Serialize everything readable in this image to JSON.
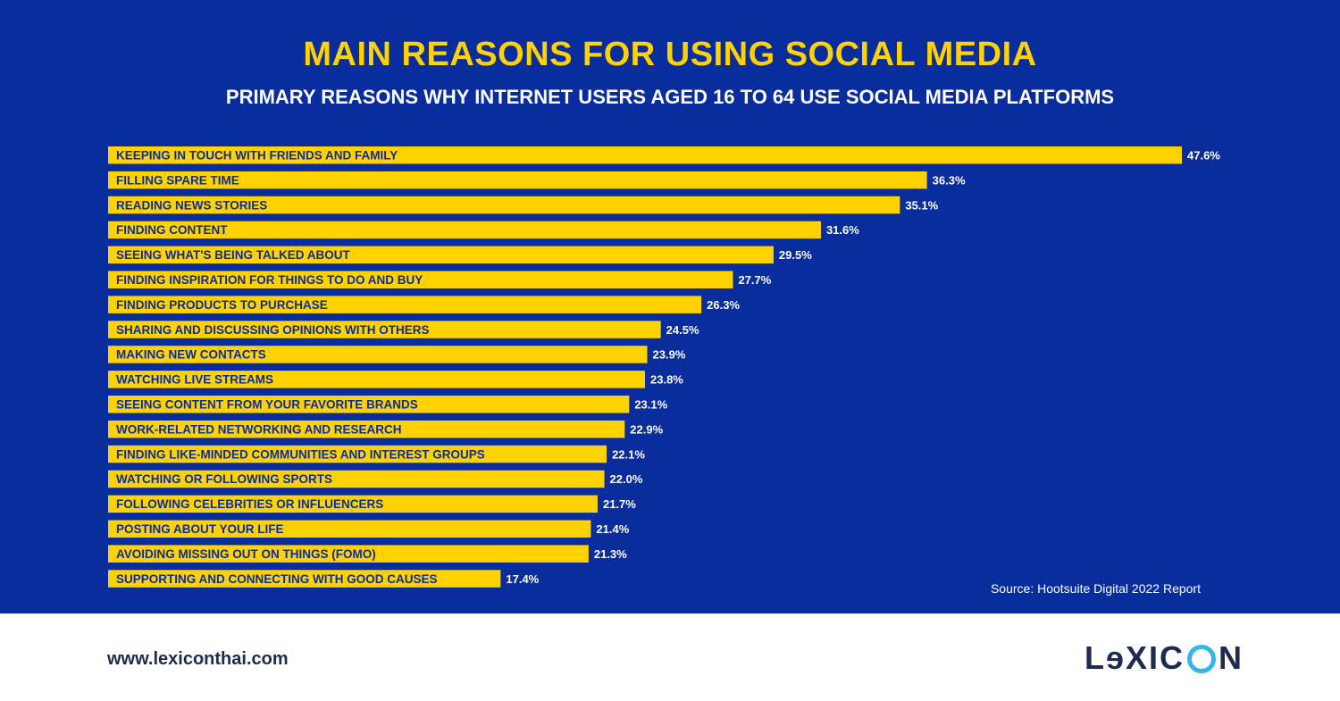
{
  "colors": {
    "background": "#0a2d9e",
    "bar": "#ffd200",
    "title": "#ffd200",
    "text": "#ffffff",
    "footer_text": "#1e2a52",
    "logo_accent": "#35b6e8"
  },
  "header": {
    "title": "MAIN REASONS FOR USING SOCIAL MEDIA",
    "subtitle": "PRIMARY REASONS WHY INTERNET USERS AGED 16 TO 64 USE SOCIAL MEDIA PLATFORMS"
  },
  "chart_data": {
    "type": "bar",
    "orientation": "horizontal",
    "title": "MAIN REASONS FOR USING SOCIAL MEDIA",
    "subtitle": "PRIMARY REASONS WHY INTERNET USERS AGED 16 TO 64 USE SOCIAL MEDIA PLATFORMS",
    "xlabel": "",
    "ylabel": "",
    "grid": false,
    "categories": [
      "KEEPING IN TOUCH WITH FRIENDS AND FAMILY",
      "FILLING SPARE TIME",
      "READING NEWS STORIES",
      "FINDING CONTENT",
      "SEEING WHAT'S BEING TALKED ABOUT",
      "FINDING INSPIRATION FOR THINGS TO DO AND BUY",
      "FINDING PRODUCTS TO PURCHASE",
      "SHARING AND DISCUSSING OPINIONS WITH OTHERS",
      "MAKING NEW CONTACTS",
      "WATCHING LIVE STREAMS",
      "SEEING CONTENT FROM YOUR FAVORITE BRANDS",
      "WORK-RELATED NETWORKING AND RESEARCH",
      "FINDING LIKE-MINDED COMMUNITIES AND INTEREST GROUPS",
      "WATCHING OR FOLLOWING SPORTS",
      "FOLLOWING CELEBRITIES OR INFLUENCERS",
      "POSTING ABOUT YOUR LIFE",
      "AVOIDING MISSING OUT ON THINGS (FOMO)",
      "SUPPORTING AND CONNECTING WITH GOOD CAUSES"
    ],
    "values": [
      47.6,
      36.3,
      35.1,
      31.6,
      29.5,
      27.7,
      26.3,
      24.5,
      23.9,
      23.8,
      23.1,
      22.9,
      22.1,
      22.0,
      21.7,
      21.4,
      21.3,
      17.4
    ],
    "value_labels": [
      "47.6%",
      "36.3%",
      "35.1%",
      "31.6%",
      "29.5%",
      "27.7%",
      "26.3%",
      "24.5%",
      "23.9%",
      "23.8%",
      "23.1%",
      "22.9%",
      "22.1%",
      "22.0%",
      "21.7%",
      "21.4%",
      "21.3%",
      "17.4%"
    ],
    "xlim": [
      0,
      47.6
    ],
    "unit": "%"
  },
  "footer": {
    "source": "Source: Hootsuite Digital 2022 Report",
    "website": "www.lexiconthai.com",
    "logo_left": "LɘXIC",
    "logo_right": "N",
    "logo_icon": "circle-o-icon"
  }
}
